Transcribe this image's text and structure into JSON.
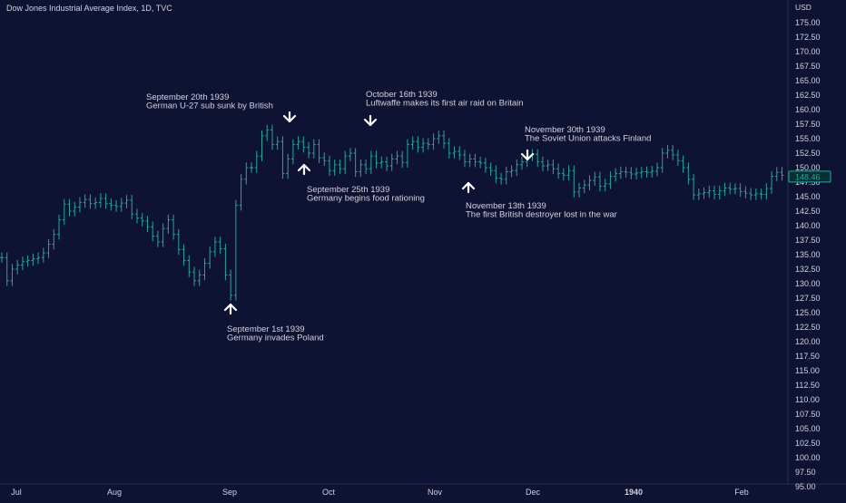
{
  "header": {
    "title": "Dow Jones Industrial Average Index, 1D, TVC"
  },
  "colors": {
    "background": "#0e1233",
    "candle": "#26a69a",
    "text": "#d1d4dc",
    "arrow": "#ffffff",
    "price_tag": "#26a69a"
  },
  "chart_data": {
    "type": "ohlc",
    "title": "Dow Jones Industrial Average Index, 1D, TVC",
    "currency": "USD",
    "grid": false,
    "ylim": [
      95,
      177.5
    ],
    "y_ticks": [
      "95.00",
      "97.50",
      "100.00",
      "102.50",
      "105.00",
      "107.50",
      "110.00",
      "112.50",
      "115.00",
      "117.50",
      "120.00",
      "122.50",
      "125.00",
      "127.50",
      "130.00",
      "132.50",
      "135.00",
      "137.50",
      "140.00",
      "142.50",
      "145.00",
      "147.50",
      "150.00",
      "152.50",
      "155.00",
      "157.50",
      "160.00",
      "162.50",
      "165.00",
      "167.50",
      "170.00",
      "172.50",
      "175.00"
    ],
    "x_ticks": [
      "Jul",
      "Aug",
      "Sep",
      "Oct",
      "Nov",
      "Dec",
      "1940",
      "Feb"
    ],
    "last_price": "148.46",
    "closes": [
      [
        0,
        134.5
      ],
      [
        1,
        130.5
      ],
      [
        2,
        132.5
      ],
      [
        3,
        133.2
      ],
      [
        4,
        133.8
      ],
      [
        5,
        134.0
      ],
      [
        6,
        134.3
      ],
      [
        7,
        134.5
      ],
      [
        8,
        135.3
      ],
      [
        9,
        136.8
      ],
      [
        10,
        138.5
      ],
      [
        11,
        141.0
      ],
      [
        12,
        143.7
      ],
      [
        13,
        142.5
      ],
      [
        14,
        143.2
      ],
      [
        15,
        144.0
      ],
      [
        16,
        144.5
      ],
      [
        17,
        143.8
      ],
      [
        18,
        144.0
      ],
      [
        19,
        144.7
      ],
      [
        20,
        143.8
      ],
      [
        21,
        143.5
      ],
      [
        22,
        143.3
      ],
      [
        23,
        143.9
      ],
      [
        24,
        144.4
      ],
      [
        25,
        142.0
      ],
      [
        26,
        141.3
      ],
      [
        27,
        140.8
      ],
      [
        28,
        139.8
      ],
      [
        29,
        138.2
      ],
      [
        30,
        137.2
      ],
      [
        31,
        139.5
      ],
      [
        32,
        141.0
      ],
      [
        33,
        138.5
      ],
      [
        34,
        135.9
      ],
      [
        35,
        134.0
      ],
      [
        36,
        132.0
      ],
      [
        37,
        130.5
      ],
      [
        38,
        131.5
      ],
      [
        39,
        133.5
      ],
      [
        40,
        135.5
      ],
      [
        41,
        137.2
      ],
      [
        42,
        136.0
      ],
      [
        43,
        131.5
      ],
      [
        44,
        128.0
      ],
      [
        45,
        143.5
      ],
      [
        46,
        148.0
      ],
      [
        47,
        150.0
      ],
      [
        48,
        150.0
      ],
      [
        49,
        152.0
      ],
      [
        50,
        155.5
      ],
      [
        51,
        156.5
      ],
      [
        52,
        154.0
      ],
      [
        53,
        154.5
      ],
      [
        54,
        149.0
      ],
      [
        55,
        151.5
      ],
      [
        56,
        154.0
      ],
      [
        57,
        154.5
      ],
      [
        58,
        153.5
      ],
      [
        59,
        152.5
      ],
      [
        60,
        154.0
      ],
      [
        61,
        151.7
      ],
      [
        62,
        151.2
      ],
      [
        63,
        149.5
      ],
      [
        64,
        150.5
      ],
      [
        65,
        149.8
      ],
      [
        66,
        152.0
      ],
      [
        67,
        152.5
      ],
      [
        68,
        149.3
      ],
      [
        69,
        150.5
      ],
      [
        70,
        149.8
      ],
      [
        71,
        152.0
      ],
      [
        72,
        150.8
      ],
      [
        73,
        151.0
      ],
      [
        74,
        150.3
      ],
      [
        75,
        151.5
      ],
      [
        76,
        152.0
      ],
      [
        77,
        150.9
      ],
      [
        78,
        154.0
      ],
      [
        79,
        154.5
      ],
      [
        80,
        153.5
      ],
      [
        81,
        154.2
      ],
      [
        82,
        154.0
      ],
      [
        83,
        155.0
      ],
      [
        84,
        155.5
      ],
      [
        85,
        154.2
      ],
      [
        86,
        152.5
      ],
      [
        87,
        152.8
      ],
      [
        88,
        152.2
      ],
      [
        89,
        151.0
      ],
      [
        90,
        151.5
      ],
      [
        91,
        151.0
      ],
      [
        92,
        150.8
      ],
      [
        93,
        150.0
      ],
      [
        94,
        149.5
      ],
      [
        95,
        148.2
      ],
      [
        96,
        148.0
      ],
      [
        97,
        149.3
      ],
      [
        98,
        149.5
      ],
      [
        99,
        150.5
      ],
      [
        100,
        151.0
      ],
      [
        101,
        152.0
      ],
      [
        102,
        152.3
      ],
      [
        103,
        151.0
      ],
      [
        104,
        150.3
      ],
      [
        105,
        150.5
      ],
      [
        106,
        149.8
      ],
      [
        107,
        149.0
      ],
      [
        108,
        148.7
      ],
      [
        109,
        149.5
      ],
      [
        110,
        145.8
      ],
      [
        111,
        146.5
      ],
      [
        112,
        147.0
      ],
      [
        113,
        147.8
      ],
      [
        114,
        148.4
      ],
      [
        115,
        146.8
      ],
      [
        116,
        147.2
      ],
      [
        117,
        148.5
      ],
      [
        118,
        149.0
      ],
      [
        119,
        149.3
      ],
      [
        120,
        149.2
      ],
      [
        121,
        148.9
      ],
      [
        122,
        149.1
      ],
      [
        123,
        149.3
      ],
      [
        124,
        149.2
      ],
      [
        125,
        149.4
      ],
      [
        126,
        150.0
      ],
      [
        127,
        152.5
      ],
      [
        128,
        153.0
      ],
      [
        129,
        152.2
      ],
      [
        130,
        151.2
      ],
      [
        131,
        150.0
      ],
      [
        132,
        148.0
      ],
      [
        133,
        145.3
      ],
      [
        134,
        145.5
      ],
      [
        135,
        145.7
      ],
      [
        136,
        146.0
      ],
      [
        137,
        145.4
      ],
      [
        138,
        146.0
      ],
      [
        139,
        146.5
      ],
      [
        140,
        146.3
      ],
      [
        141,
        146.4
      ],
      [
        142,
        145.9
      ],
      [
        143,
        145.6
      ],
      [
        144,
        145.3
      ],
      [
        145,
        145.5
      ],
      [
        146,
        145.4
      ],
      [
        147,
        146.4
      ],
      [
        148,
        148.5
      ],
      [
        149,
        149.2
      ],
      [
        150,
        148.7
      ],
      [
        151,
        148.46
      ]
    ],
    "annotations": [
      {
        "date_line": "September 1st 1939",
        "event": "Germany invades Poland",
        "direction": "up"
      },
      {
        "date_line": "September 20th 1939",
        "event": "German U-27 sub sunk by British",
        "direction": "down"
      },
      {
        "date_line": "September 25th 1939",
        "event": "Germany begins food rationing",
        "direction": "up"
      },
      {
        "date_line": "October 16th 1939",
        "event": "Luftwaffe makes its first air raid on Britain",
        "direction": "down"
      },
      {
        "date_line": "November 13th 1939",
        "event": "The first British destroyer lost in the war",
        "direction": "up"
      },
      {
        "date_line": "November 30th 1939",
        "event": "The Soviet Union attacks Finland",
        "direction": "down"
      }
    ]
  }
}
